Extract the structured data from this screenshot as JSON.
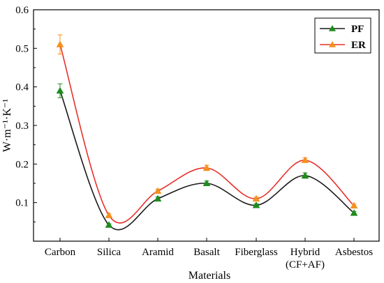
{
  "chart_data": {
    "type": "line",
    "title": "",
    "xlabel": "Materials",
    "ylabel": "W·m⁻¹·K⁻¹",
    "ylim": [
      0.0,
      0.6
    ],
    "yticks": [
      "0.1",
      "0.2",
      "0.3",
      "0.4",
      "0.5",
      "0.6"
    ],
    "categories": [
      {
        "line1": "Carbon",
        "line2": ""
      },
      {
        "line1": "Silica",
        "line2": ""
      },
      {
        "line1": "Aramid",
        "line2": ""
      },
      {
        "line1": "Basalt",
        "line2": ""
      },
      {
        "line1": "Fiberglass",
        "line2": ""
      },
      {
        "line1": "Hybrid",
        "line2": "(CF+AF)"
      },
      {
        "line1": "Asbestos",
        "line2": ""
      }
    ],
    "series": [
      {
        "name": "PF",
        "color": "#1a1a1a",
        "marker_color": "#1e8c1e",
        "values": [
          0.39,
          0.042,
          0.11,
          0.15,
          0.093,
          0.17,
          0.073
        ],
        "errors": [
          0.018,
          0.003,
          0.005,
          0.006,
          0.004,
          0.007,
          0.004
        ]
      },
      {
        "name": "ER",
        "color": "#e8302a",
        "marker_color": "#f5901e",
        "values": [
          0.51,
          0.067,
          0.13,
          0.19,
          0.11,
          0.21,
          0.092
        ],
        "errors": [
          0.025,
          0.004,
          0.005,
          0.007,
          0.004,
          0.006,
          0.004
        ]
      }
    ],
    "legend": "top-right",
    "grid": false
  }
}
